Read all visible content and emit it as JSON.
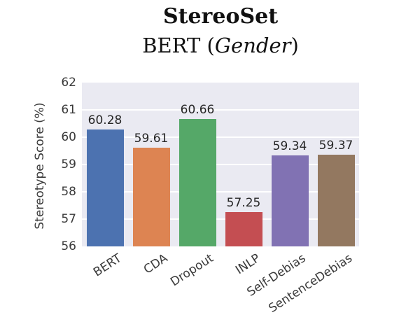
{
  "title": "StereoSet",
  "subtitle_prefix": "BERT (",
  "subtitle_italic": "Gender",
  "subtitle_suffix": ")",
  "ylabel": "Stereotype Score (%)",
  "chart_data": {
    "type": "bar",
    "title": "StereoSet",
    "subtitle": "BERT (Gender)",
    "categories": [
      "BERT",
      "CDA",
      "Dropout",
      "INLP",
      "Self-Debias",
      "SentenceDebias"
    ],
    "values": [
      60.28,
      59.61,
      60.66,
      57.25,
      59.34,
      59.37
    ],
    "value_labels": [
      "60.28",
      "59.61",
      "60.66",
      "57.25",
      "59.34",
      "59.37"
    ],
    "bar_colors": [
      "#4C72B0",
      "#DD8452",
      "#55A868",
      "#C44E52",
      "#8172B3",
      "#937860"
    ],
    "xlabel": "",
    "ylabel": "Stereotype Score (%)",
    "ylim": [
      56,
      62
    ],
    "yticks": [
      56,
      57,
      58,
      59,
      60,
      61,
      62
    ],
    "grid": true,
    "legend": false,
    "plot_background": "#EAEAF2",
    "grid_color": "#FFFFFF"
  }
}
